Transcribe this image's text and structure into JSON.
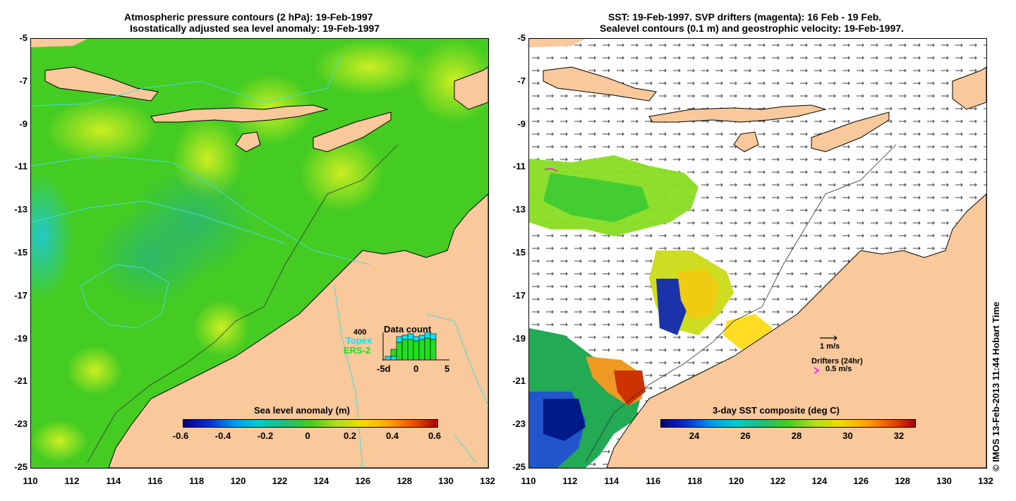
{
  "left_panel": {
    "title_line1": "Atmospheric pressure contours (2 hPa): 19-Feb-1997",
    "title_line2": "Isostatically adjusted sea level anomaly: 19-Feb-1997",
    "colorbar_title": "Sea level anomaly (m)",
    "colorbar_ticks": [
      "-0.6",
      "-0.4",
      "-0.2",
      "0",
      "0.2",
      "0.4",
      "0.6"
    ],
    "inset": {
      "max_label": "400",
      "topex_label": "Topex",
      "ers_label": "ERS-2",
      "title": "Data count",
      "x_ticks": [
        "-5d",
        "0",
        "5"
      ],
      "topex_color": "#00e5ff",
      "ers_color": "#22dd22"
    }
  },
  "right_panel": {
    "title_line1": "SST: 19-Feb-1997. SVP drifters (magenta): 16 Feb - 19 Feb.",
    "title_line2": "Sealevel contours (0.1 m) and geostrophic velocity: 19-Feb-1997.",
    "colorbar_title": "3-day SST composite (deg C)",
    "colorbar_ticks": [
      "24",
      "26",
      "28",
      "30",
      "32"
    ],
    "velocity_label": "1 m/s",
    "drifters_label": "Drifters (24hr)",
    "drifter_speed_label": "0.5 m/s",
    "drifter_color": "#ff00ff"
  },
  "y_ticks": [
    "-5",
    "-7",
    "-9",
    "-11",
    "-13",
    "-15",
    "-17",
    "-19",
    "-21",
    "-23",
    "-25"
  ],
  "x_ticks": [
    "110",
    "112",
    "114",
    "116",
    "118",
    "120",
    "122",
    "124",
    "126",
    "128",
    "130",
    "132"
  ],
  "copyright": "© IMOS 13-Feb-2013 11:44 Hobart Time",
  "colors": {
    "land": "#f9c89b",
    "ocean_green": "#44cc22",
    "anomaly_cyan": "#22cccc"
  }
}
